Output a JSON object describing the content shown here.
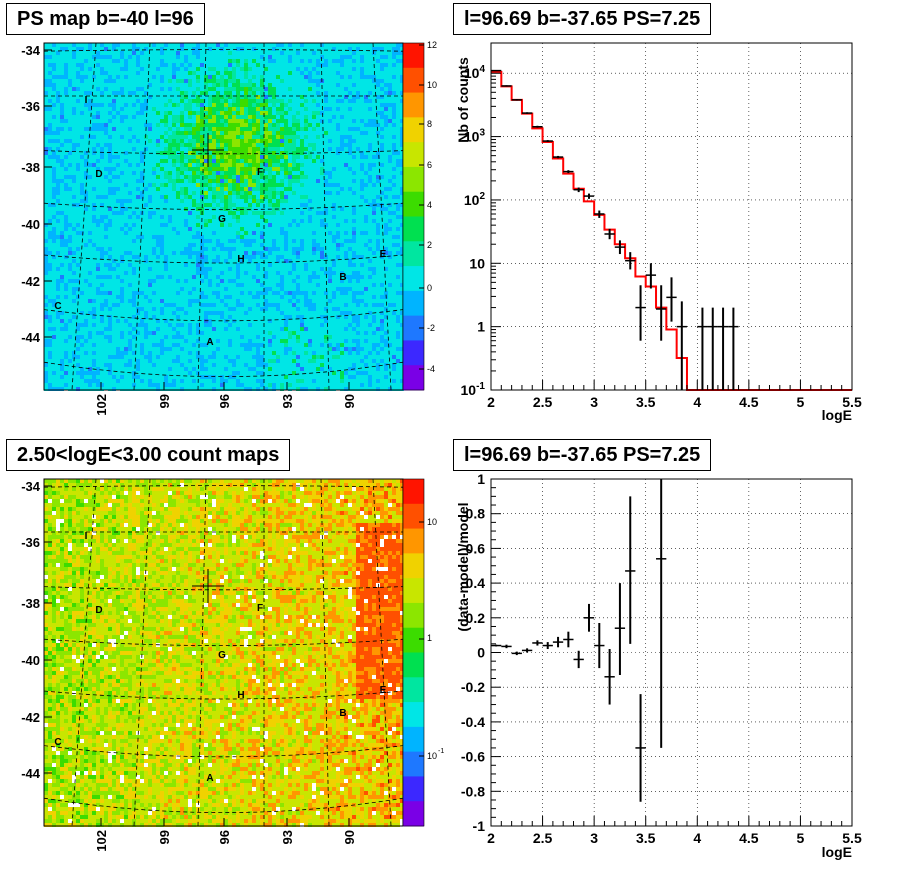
{
  "titles": {
    "ps_map": "PS map b=-40 l=96",
    "spectrum": "l=96.69 b=-37.65 PS=7.25",
    "count_map": "2.50<logE<3.00 count maps",
    "residual": "l=96.69 b=-37.65 PS=7.25"
  },
  "maps": {
    "y_ticks": [
      "-34",
      "-36",
      "-38",
      "-40",
      "-42",
      "-44"
    ],
    "x_ticks": [
      "102",
      "99",
      "96",
      "93",
      "90"
    ],
    "sources": [
      "I",
      "D",
      "F",
      "G",
      "H",
      "E",
      "B",
      "C",
      "A"
    ],
    "ps_colorbar_ticks": [
      "12",
      "10",
      "8",
      "6",
      "4",
      "2",
      "0",
      "-2",
      "-4"
    ],
    "count_colorbar_ticks": [
      "10",
      "1",
      "10",
      "-1"
    ]
  },
  "chart_data": [
    {
      "type": "line",
      "title": "l=96.69 b=-37.65 PS=7.25",
      "xlabel": "logE",
      "ylabel": "Nb of counts",
      "log_y": true,
      "xlim": [
        2,
        5.5
      ],
      "ylim": [
        0.1,
        30000
      ],
      "x_ticks": [
        "2",
        "2.5",
        "3",
        "3.5",
        "4",
        "4.5",
        "5",
        "5.5"
      ],
      "y_ticks": [
        "10^4",
        "10^3",
        "10^2",
        "10",
        "1",
        "10^-1"
      ],
      "model_color": "#ff0000",
      "model_bin_edges": [
        2.0,
        2.1,
        2.2,
        2.3,
        2.4,
        2.5,
        2.6,
        2.7,
        2.8,
        2.9,
        3.0,
        3.1,
        3.2,
        3.3,
        3.4,
        3.5,
        3.6,
        3.7,
        3.8,
        3.9,
        4.0,
        5.5
      ],
      "model_values": [
        10500,
        6200,
        3800,
        2300,
        1350,
        820,
        450,
        260,
        150,
        95,
        58,
        34,
        20,
        12,
        6.2,
        4.3,
        2.0,
        0.9,
        0.32,
        0.1,
        0.1
      ],
      "data_points": [
        {
          "x": 2.05,
          "y": 11000,
          "lo": 10800,
          "hi": 11200
        },
        {
          "x": 2.15,
          "y": 6300,
          "lo": 6150,
          "hi": 6450
        },
        {
          "x": 2.25,
          "y": 3800,
          "lo": 3700,
          "hi": 3900
        },
        {
          "x": 2.35,
          "y": 2350,
          "lo": 2280,
          "hi": 2420
        },
        {
          "x": 2.45,
          "y": 1430,
          "lo": 1380,
          "hi": 1480
        },
        {
          "x": 2.55,
          "y": 850,
          "lo": 820,
          "hi": 880
        },
        {
          "x": 2.65,
          "y": 475,
          "lo": 455,
          "hi": 495
        },
        {
          "x": 2.75,
          "y": 280,
          "lo": 265,
          "hi": 295
        },
        {
          "x": 2.85,
          "y": 145,
          "lo": 133,
          "hi": 157
        },
        {
          "x": 2.95,
          "y": 115,
          "lo": 104,
          "hi": 126
        },
        {
          "x": 3.05,
          "y": 60,
          "lo": 52,
          "hi": 68
        },
        {
          "x": 3.15,
          "y": 29,
          "lo": 24,
          "hi": 35
        },
        {
          "x": 3.25,
          "y": 18,
          "lo": 14,
          "hi": 23
        },
        {
          "x": 3.35,
          "y": 11,
          "lo": 8,
          "hi": 15
        },
        {
          "x": 3.45,
          "y": 2,
          "lo": 0.6,
          "hi": 4.5
        },
        {
          "x": 3.55,
          "y": 6.5,
          "lo": 4,
          "hi": 10
        },
        {
          "x": 3.65,
          "y": 1.9,
          "lo": 0.6,
          "hi": 4.5
        },
        {
          "x": 3.75,
          "y": 2.9,
          "lo": 1.2,
          "hi": 6
        },
        {
          "x": 3.85,
          "y": 1,
          "lo": 0.1,
          "hi": 2.5
        },
        {
          "x": 4.05,
          "y": 1,
          "lo": 0.1,
          "hi": 2
        },
        {
          "x": 4.15,
          "y": 1,
          "lo": 0.1,
          "hi": 2
        },
        {
          "x": 4.25,
          "y": 1,
          "lo": 0.1,
          "hi": 2
        },
        {
          "x": 4.35,
          "y": 1,
          "lo": 0.1,
          "hi": 2
        }
      ]
    },
    {
      "type": "scatter",
      "title": "l=96.69 b=-37.65 PS=7.25",
      "xlabel": "logE",
      "ylabel": "(data-model)/model",
      "xlim": [
        2,
        5.5
      ],
      "ylim": [
        -1,
        1
      ],
      "x_ticks": [
        "2",
        "2.5",
        "3",
        "3.5",
        "4",
        "4.5",
        "5",
        "5.5"
      ],
      "y_ticks": [
        "1",
        "0.8",
        "0.6",
        "0.4",
        "0.2",
        "0",
        "-0.2",
        "-0.4",
        "-0.6",
        "-0.8",
        "-1"
      ],
      "data_points": [
        {
          "x": 2.05,
          "y": 0.04,
          "lo": 0.035,
          "hi": 0.045
        },
        {
          "x": 2.15,
          "y": 0.035,
          "lo": 0.025,
          "hi": 0.045
        },
        {
          "x": 2.25,
          "y": -0.005,
          "lo": -0.015,
          "hi": 0.005
        },
        {
          "x": 2.35,
          "y": 0.012,
          "lo": 0.0,
          "hi": 0.024
        },
        {
          "x": 2.45,
          "y": 0.055,
          "lo": 0.04,
          "hi": 0.07
        },
        {
          "x": 2.55,
          "y": 0.04,
          "lo": 0.02,
          "hi": 0.06
        },
        {
          "x": 2.65,
          "y": 0.06,
          "lo": 0.03,
          "hi": 0.09
        },
        {
          "x": 2.75,
          "y": 0.075,
          "lo": 0.03,
          "hi": 0.12
        },
        {
          "x": 2.85,
          "y": -0.04,
          "lo": -0.09,
          "hi": 0.01
        },
        {
          "x": 2.95,
          "y": 0.2,
          "lo": 0.12,
          "hi": 0.28
        },
        {
          "x": 3.05,
          "y": 0.04,
          "lo": -0.09,
          "hi": 0.17
        },
        {
          "x": 3.15,
          "y": -0.14,
          "lo": -0.3,
          "hi": 0.02
        },
        {
          "x": 3.25,
          "y": 0.14,
          "lo": -0.13,
          "hi": 0.4
        },
        {
          "x": 3.35,
          "y": 0.47,
          "lo": 0.05,
          "hi": 0.9
        },
        {
          "x": 3.45,
          "y": -0.55,
          "lo": -0.86,
          "hi": -0.24
        },
        {
          "x": 3.65,
          "y": 0.54,
          "lo": -0.55,
          "hi": 1.0
        }
      ]
    }
  ]
}
